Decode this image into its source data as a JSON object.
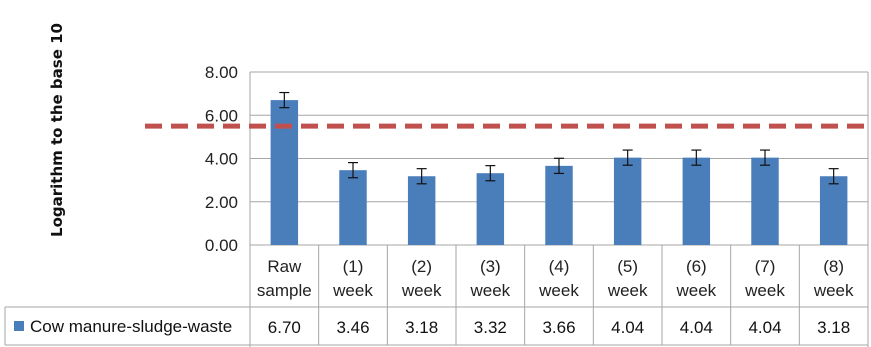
{
  "chart_data": {
    "type": "bar",
    "ylabel": "Logarithm to the base 10",
    "ylim": [
      0,
      8
    ],
    "yticks": [
      "0.00",
      "2.00",
      "4.00",
      "6.00",
      "8.00"
    ],
    "categories": [
      [
        "Raw",
        "sample"
      ],
      [
        "(1)",
        "week"
      ],
      [
        "(2)",
        "week"
      ],
      [
        "(3)",
        "week"
      ],
      [
        "(4)",
        "week"
      ],
      [
        "(5)",
        "week"
      ],
      [
        "(6)",
        "week"
      ],
      [
        "(7)",
        "week"
      ],
      [
        "(8)",
        "week"
      ]
    ],
    "series": [
      {
        "name": "Cow manure-sludge-waste",
        "values": [
          6.7,
          3.46,
          3.18,
          3.32,
          3.66,
          4.04,
          4.04,
          4.04,
          3.18
        ],
        "value_labels": [
          "6.70",
          "3.46",
          "3.18",
          "3.32",
          "3.66",
          "4.04",
          "4.04",
          "4.04",
          "3.18"
        ],
        "error": [
          0.35,
          0.35,
          0.35,
          0.35,
          0.35,
          0.35,
          0.35,
          0.35,
          0.35
        ]
      }
    ],
    "reference_line": 5.5,
    "grid": true,
    "legend": "data-table",
    "colors": {
      "bar": "#4a7ebb",
      "reference_line": "#c0504d",
      "grid": "#a6a6a6"
    }
  }
}
